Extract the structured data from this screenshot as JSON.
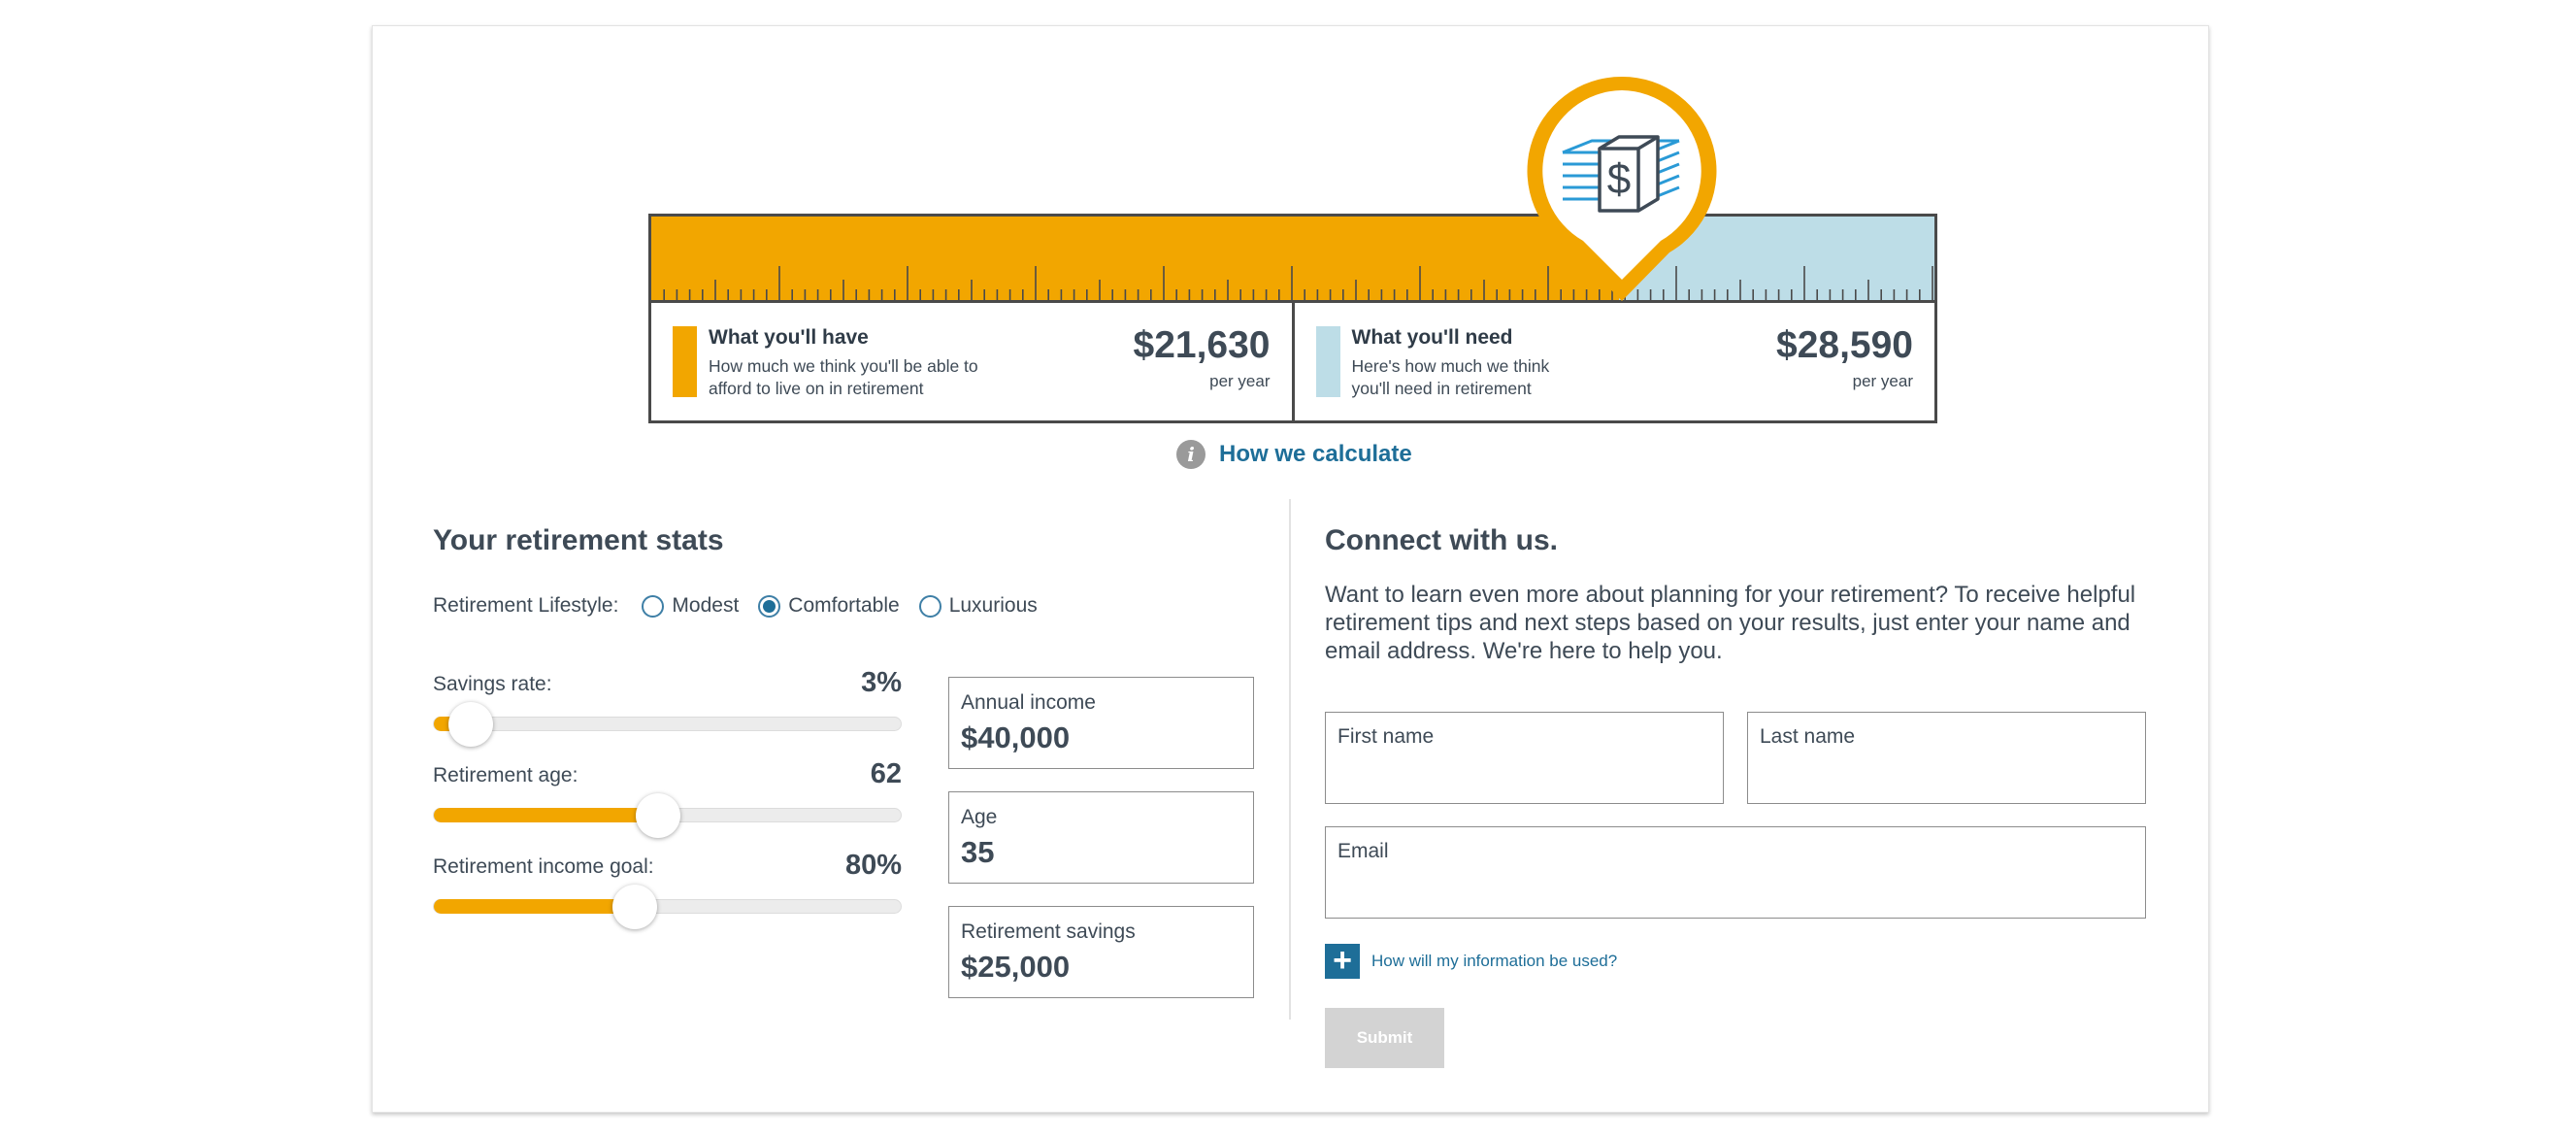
{
  "gauge": {
    "have": {
      "title": "What you'll have",
      "description": "How much we think you'll be able to afford to live on in retirement",
      "amount": "$21,630",
      "unit": "per year",
      "color": "#f2a600"
    },
    "need": {
      "title": "What you'll need",
      "description": "Here's how much we think you'll need in retirement",
      "amount": "$28,590",
      "unit": "per year",
      "color": "#bddde7"
    },
    "pin_icon": "money-stack-icon"
  },
  "calculate_link": {
    "icon": "info-icon",
    "icon_glyph": "i",
    "label": "How we calculate"
  },
  "stats": {
    "title": "Your retirement stats",
    "lifestyle": {
      "label": "Retirement Lifestyle:",
      "options": [
        "Modest",
        "Comfortable",
        "Luxurious"
      ],
      "selected": "Comfortable"
    },
    "sliders": [
      {
        "label": "Savings rate:",
        "value": "3%",
        "fill_fraction": 0.08
      },
      {
        "label": "Retirement age:",
        "value": "62",
        "fill_fraction": 0.48
      },
      {
        "label": "Retirement income goal:",
        "value": "80%",
        "fill_fraction": 0.43
      }
    ],
    "boxes": [
      {
        "label": "Annual income",
        "value": "$40,000"
      },
      {
        "label": "Age",
        "value": "35"
      },
      {
        "label": "Retirement savings",
        "value": "$25,000"
      }
    ]
  },
  "connect": {
    "title": "Connect with us.",
    "description": "Want to learn even more about planning for your retirement? To receive helpful retirement tips and next steps based on your results, just enter your name and email address. We're here to help you.",
    "fields": {
      "first_name": "First name",
      "last_name": "Last name",
      "email": "Email"
    },
    "info_toggle": {
      "icon": "plus-icon",
      "label": "How will my information be used?"
    },
    "submit_label": "Submit"
  },
  "colors": {
    "accent_orange": "#f2a600",
    "need_blue": "#bddde7",
    "link_blue": "#1e6e98",
    "text": "#3e4a56"
  }
}
